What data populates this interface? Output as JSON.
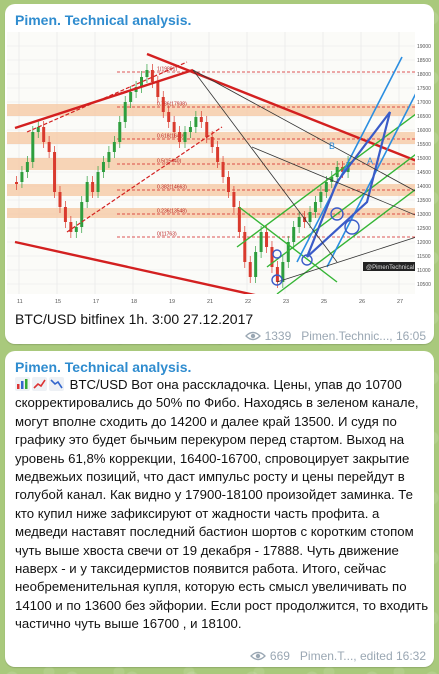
{
  "messages": [
    {
      "author": "Pimen. Technical analysis.",
      "caption": "BTC/USD   bitfinex  1h.  3:00   27.12.2017",
      "views": "1339",
      "signature_time": "Pimen.Technic..., 16:05",
      "chart": {
        "price_ticks": [
          "19000",
          "18500",
          "18000",
          "17500",
          "17000",
          "16500",
          "16000",
          "15500",
          "15000",
          "14500",
          "14000",
          "13500",
          "13000",
          "12500",
          "12000",
          "11500",
          "11000",
          "10500"
        ],
        "date_ticks": [
          "11",
          "15",
          "17",
          "18",
          "19",
          "21",
          "22",
          "23",
          "25",
          "26",
          "27"
        ],
        "fib_labels": [
          "1(19891)",
          "0.786(17938)",
          "0.618(16416)",
          "0.5(15440)",
          "0.382(14663)",
          "0.236(13548)",
          "0(11763)"
        ],
        "annotations": [
          "B",
          "A"
        ],
        "current_price": "15465",
        "watermark": "@PimenTechnical"
      }
    },
    {
      "author": "Pimen. Technical analysis.",
      "text": "BTC/USD  Вот она расскладочка.  Цены,  упав до 10700 скорректировались до 50% по Фибо.  Находясь в зеленом канале, могут вполне сходить до 14200 и далее край 13500.  И судя по графику это будет бычьим перекуром перед стартом.     Выход на уровень 61,8% коррекции, 16400-16700, спровоцирует закрытие медвежьих позиций, что даст импульс росту и цены перейдут в голубой канал.  Как видно у 17900-18100 произойдет заминка.  Те кто купил ниже зафиксируют от жадности часть профита. а медведи наставят последний бастион шортов с коротким стопом чуть выше хвоста свечи от 19 декабря  - 17888.  Чуть движение наверх  - и у таксидермистов появится работа.  Итого,  сейчас необременительная  купля, которую есть смысл увеличивать по 14100 и  по 13600 без эйфории. Если рост продолжится,  то входить частично чуть выше  16700 , и 18100.",
      "views": "669",
      "signature_time": "Pimen.T..., edited 16:32"
    }
  ],
  "colors": {
    "author": "#2f8ccf",
    "meta": "#9aa7b3",
    "channel_red": "#d32020",
    "channel_green": "#35b535",
    "channel_blue": "#2b8ee0",
    "fib_band": "#f6c7a0",
    "candle_up": "#2e9e3e",
    "candle_down": "#d93a2e"
  },
  "icons": [
    "eye-icon",
    "bar-chart-emoji",
    "chart-up-emoji",
    "chart-down-emoji"
  ]
}
